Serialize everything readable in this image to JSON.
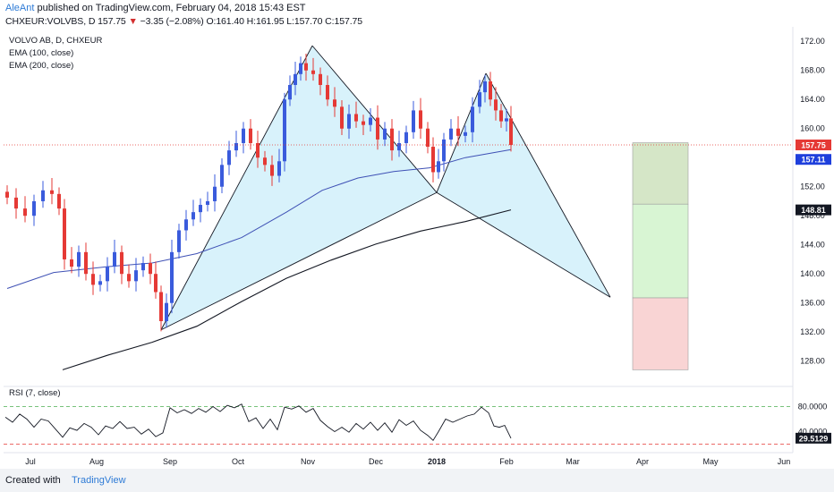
{
  "header": {
    "author": "AleAnt",
    "published": "published on TradingView.com, February 04, 2018 15:43 EST",
    "symbol": "CHXEUR:VOLVBS, D",
    "last": "157.75",
    "change_arrow": "▼",
    "change": "−3.35 (−2.08%)",
    "ohlc": "O:161.40 H:161.95 L:157.70 C:157.75"
  },
  "footer": {
    "created": "Created with",
    "brand": "TradingView"
  },
  "chart_data": [
    {
      "type": "candlestick",
      "legend": [
        "VOLVO AB, D, CHXEUR",
        "EMA (100, close)",
        "EMA (200, close)"
      ],
      "price_axis_ticks": [
        "172.00",
        "168.00",
        "164.00",
        "160.00",
        "156.00",
        "152.00",
        "148.00",
        "144.00",
        "140.00",
        "136.00",
        "132.00",
        "128.00"
      ],
      "time_axis_ticks": [
        "Jul",
        "Aug",
        "Sep",
        "Oct",
        "Nov",
        "Dec",
        "2018",
        "Feb",
        "Mar",
        "Apr",
        "May",
        "Jun"
      ],
      "ylim": [
        125.5,
        174
      ],
      "price_labels": [
        {
          "text": "157.75",
          "value": 157.75,
          "color": "#e53935"
        },
        {
          "text": "157.11",
          "value": 157.11,
          "color": "#1e3fdc"
        },
        {
          "text": "148.81",
          "value": 148.81,
          "color": "#131722"
        }
      ],
      "colors": {
        "up": "#3a5bdc",
        "down": "#e53935",
        "ema100": "#3f51b5",
        "ema200": "#131722",
        "pattern_fill": "#d4f1fb",
        "pattern_line": "#131722",
        "last_line": "#e53935"
      },
      "close_series": [
        {
          "x": 8,
          "c": 150.5
        },
        {
          "x": 18,
          "c": 149.0
        },
        {
          "x": 28,
          "c": 148.0
        },
        {
          "x": 38,
          "c": 150.0
        },
        {
          "x": 48,
          "c": 151.5
        },
        {
          "x": 58,
          "c": 151.0
        },
        {
          "x": 66,
          "c": 149.0
        },
        {
          "x": 72,
          "c": 142.0
        },
        {
          "x": 80,
          "c": 141.0
        },
        {
          "x": 88,
          "c": 143.0
        },
        {
          "x": 96,
          "c": 140.0
        },
        {
          "x": 104,
          "c": 138.5
        },
        {
          "x": 112,
          "c": 139.0
        },
        {
          "x": 120,
          "c": 141.0
        },
        {
          "x": 128,
          "c": 143.0
        },
        {
          "x": 136,
          "c": 140.0
        },
        {
          "x": 144,
          "c": 139.0
        },
        {
          "x": 152,
          "c": 140.5
        },
        {
          "x": 160,
          "c": 141.5
        },
        {
          "x": 168,
          "c": 140.0
        },
        {
          "x": 174,
          "c": 137.5
        },
        {
          "x": 180,
          "c": 133.5
        },
        {
          "x": 186,
          "c": 136.0
        },
        {
          "x": 192,
          "c": 143.0
        },
        {
          "x": 200,
          "c": 146.0
        },
        {
          "x": 208,
          "c": 147.5
        },
        {
          "x": 216,
          "c": 148.5
        },
        {
          "x": 224,
          "c": 149.5
        },
        {
          "x": 232,
          "c": 150.0
        },
        {
          "x": 240,
          "c": 152.0
        },
        {
          "x": 248,
          "c": 155.0
        },
        {
          "x": 256,
          "c": 157.0
        },
        {
          "x": 264,
          "c": 158.0
        },
        {
          "x": 272,
          "c": 160.0
        },
        {
          "x": 280,
          "c": 158.0
        },
        {
          "x": 288,
          "c": 156.0
        },
        {
          "x": 296,
          "c": 155.0
        },
        {
          "x": 304,
          "c": 153.5
        },
        {
          "x": 312,
          "c": 155.5
        },
        {
          "x": 318,
          "c": 164.0
        },
        {
          "x": 324,
          "c": 166.0
        },
        {
          "x": 330,
          "c": 167.5
        },
        {
          "x": 336,
          "c": 169.0
        },
        {
          "x": 342,
          "c": 168.0
        },
        {
          "x": 350,
          "c": 167.5
        },
        {
          "x": 358,
          "c": 166.0
        },
        {
          "x": 366,
          "c": 164.0
        },
        {
          "x": 374,
          "c": 163.0
        },
        {
          "x": 382,
          "c": 160.0
        },
        {
          "x": 390,
          "c": 162.0
        },
        {
          "x": 398,
          "c": 161.0
        },
        {
          "x": 406,
          "c": 160.5
        },
        {
          "x": 414,
          "c": 161.5
        },
        {
          "x": 422,
          "c": 158.5
        },
        {
          "x": 430,
          "c": 160.0
        },
        {
          "x": 438,
          "c": 157.0
        },
        {
          "x": 446,
          "c": 158.0
        },
        {
          "x": 454,
          "c": 159.5
        },
        {
          "x": 462,
          "c": 162.5
        },
        {
          "x": 470,
          "c": 160.0
        },
        {
          "x": 478,
          "c": 157.5
        },
        {
          "x": 484,
          "c": 154.0
        },
        {
          "x": 490,
          "c": 155.5
        },
        {
          "x": 496,
          "c": 158.5
        },
        {
          "x": 504,
          "c": 160.0
        },
        {
          "x": 512,
          "c": 159.0
        },
        {
          "x": 520,
          "c": 159.5
        },
        {
          "x": 528,
          "c": 163.0
        },
        {
          "x": 536,
          "c": 165.0
        },
        {
          "x": 542,
          "c": 166.5
        },
        {
          "x": 548,
          "c": 164.0
        },
        {
          "x": 554,
          "c": 162.5
        },
        {
          "x": 560,
          "c": 161.0
        },
        {
          "x": 566,
          "c": 161.4
        },
        {
          "x": 571,
          "c": 157.75
        }
      ],
      "ema100": [
        {
          "x": 8,
          "v": 138.0
        },
        {
          "x": 60,
          "v": 140.2
        },
        {
          "x": 120,
          "v": 141.0
        },
        {
          "x": 170,
          "v": 141.5
        },
        {
          "x": 220,
          "v": 142.8
        },
        {
          "x": 270,
          "v": 145.0
        },
        {
          "x": 320,
          "v": 148.5
        },
        {
          "x": 360,
          "v": 151.5
        },
        {
          "x": 400,
          "v": 153.2
        },
        {
          "x": 440,
          "v": 154.1
        },
        {
          "x": 480,
          "v": 154.6
        },
        {
          "x": 520,
          "v": 156.0
        },
        {
          "x": 571,
          "v": 157.11
        }
      ],
      "ema200": [
        {
          "x": 70,
          "v": 126.8
        },
        {
          "x": 120,
          "v": 128.8
        },
        {
          "x": 170,
          "v": 130.6
        },
        {
          "x": 220,
          "v": 132.8
        },
        {
          "x": 270,
          "v": 136.2
        },
        {
          "x": 320,
          "v": 139.4
        },
        {
          "x": 370,
          "v": 141.9
        },
        {
          "x": 420,
          "v": 144.1
        },
        {
          "x": 470,
          "v": 145.9
        },
        {
          "x": 520,
          "v": 147.2
        },
        {
          "x": 571,
          "v": 148.81
        }
      ],
      "pattern_points": [
        {
          "x": 180,
          "v": 132.3
        },
        {
          "x": 349,
          "v": 171.4
        },
        {
          "x": 488,
          "v": 151.2
        },
        {
          "x": 543,
          "v": 167.6
        },
        {
          "x": 682,
          "v": 136.8
        }
      ],
      "targets": {
        "entry": 157.75,
        "stop": 158.05,
        "take_profit": 149.6,
        "middle": 136.7,
        "bottom": 126.8
      },
      "last_price": 157.75
    },
    {
      "type": "line",
      "legend": "RSI (7, close)",
      "y_ticks": [
        "80.0000",
        "40.0000"
      ],
      "last_label": "29.5129",
      "upper_band": 80,
      "lower_band": 20,
      "ylim": [
        15,
        95
      ],
      "values": [
        {
          "x": 6,
          "v": 63
        },
        {
          "x": 14,
          "v": 55
        },
        {
          "x": 22,
          "v": 68
        },
        {
          "x": 30,
          "v": 60
        },
        {
          "x": 38,
          "v": 47
        },
        {
          "x": 46,
          "v": 60
        },
        {
          "x": 54,
          "v": 57
        },
        {
          "x": 62,
          "v": 44
        },
        {
          "x": 70,
          "v": 31
        },
        {
          "x": 78,
          "v": 46
        },
        {
          "x": 86,
          "v": 42
        },
        {
          "x": 94,
          "v": 53
        },
        {
          "x": 102,
          "v": 47
        },
        {
          "x": 110,
          "v": 35
        },
        {
          "x": 118,
          "v": 49
        },
        {
          "x": 126,
          "v": 45
        },
        {
          "x": 134,
          "v": 56
        },
        {
          "x": 142,
          "v": 45
        },
        {
          "x": 150,
          "v": 47
        },
        {
          "x": 158,
          "v": 36
        },
        {
          "x": 166,
          "v": 44
        },
        {
          "x": 174,
          "v": 32
        },
        {
          "x": 182,
          "v": 38
        },
        {
          "x": 190,
          "v": 78
        },
        {
          "x": 198,
          "v": 70
        },
        {
          "x": 206,
          "v": 75
        },
        {
          "x": 214,
          "v": 69
        },
        {
          "x": 222,
          "v": 77
        },
        {
          "x": 230,
          "v": 71
        },
        {
          "x": 238,
          "v": 80
        },
        {
          "x": 246,
          "v": 72
        },
        {
          "x": 254,
          "v": 82
        },
        {
          "x": 262,
          "v": 78
        },
        {
          "x": 270,
          "v": 84
        },
        {
          "x": 278,
          "v": 56
        },
        {
          "x": 286,
          "v": 62
        },
        {
          "x": 294,
          "v": 45
        },
        {
          "x": 302,
          "v": 60
        },
        {
          "x": 310,
          "v": 43
        },
        {
          "x": 318,
          "v": 79
        },
        {
          "x": 326,
          "v": 76
        },
        {
          "x": 334,
          "v": 81
        },
        {
          "x": 342,
          "v": 71
        },
        {
          "x": 350,
          "v": 77
        },
        {
          "x": 358,
          "v": 58
        },
        {
          "x": 366,
          "v": 48
        },
        {
          "x": 374,
          "v": 40
        },
        {
          "x": 382,
          "v": 47
        },
        {
          "x": 390,
          "v": 39
        },
        {
          "x": 398,
          "v": 53
        },
        {
          "x": 406,
          "v": 44
        },
        {
          "x": 414,
          "v": 55
        },
        {
          "x": 422,
          "v": 42
        },
        {
          "x": 430,
          "v": 54
        },
        {
          "x": 438,
          "v": 39
        },
        {
          "x": 446,
          "v": 59
        },
        {
          "x": 454,
          "v": 50
        },
        {
          "x": 462,
          "v": 57
        },
        {
          "x": 470,
          "v": 42
        },
        {
          "x": 478,
          "v": 34
        },
        {
          "x": 484,
          "v": 26
        },
        {
          "x": 490,
          "v": 40
        },
        {
          "x": 498,
          "v": 60
        },
        {
          "x": 506,
          "v": 55
        },
        {
          "x": 514,
          "v": 60
        },
        {
          "x": 522,
          "v": 65
        },
        {
          "x": 530,
          "v": 68
        },
        {
          "x": 538,
          "v": 79
        },
        {
          "x": 546,
          "v": 70
        },
        {
          "x": 552,
          "v": 49
        },
        {
          "x": 558,
          "v": 47
        },
        {
          "x": 564,
          "v": 50
        },
        {
          "x": 571,
          "v": 29.5
        }
      ]
    }
  ]
}
